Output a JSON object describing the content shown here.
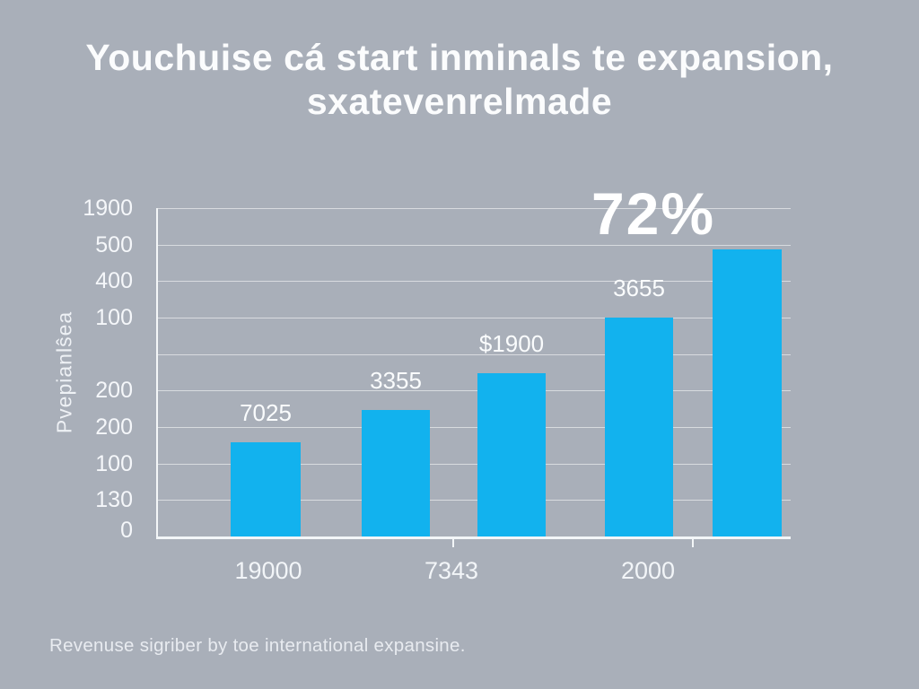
{
  "title": {
    "line1": "Youchuise cá start inminals te expansion,",
    "line2": "sxatevenrelmade"
  },
  "colors": {
    "background": "#a9afb9",
    "bar": "#12b2ee",
    "text": "#fbfcfd",
    "gridline": "rgba(255,255,255,0.55)",
    "axis": "#f3f6f8"
  },
  "chart_data": {
    "type": "bar",
    "title": "Youchuise cá start inminals te expansion, sxatevenrelmade",
    "ylabel": "Pvepianlŝea",
    "xlabel": "",
    "caption": "Revenuse sigriber by toe international expansine.",
    "annotation": "72%",
    "grid": true,
    "legend": false,
    "y_tick_labels": [
      "1900",
      "500",
      "400",
      "100",
      "",
      "200",
      "200",
      "100",
      "130",
      "0"
    ],
    "x_tick_labels": [
      "19000",
      "7343",
      "2000"
    ],
    "bar_color": "#12b2ee",
    "bars": [
      {
        "data_label": "7025",
        "height_pct": 28.7
      },
      {
        "data_label": "3355",
        "height_pct": 38.5
      },
      {
        "data_label": "$1900",
        "height_pct": 49.7
      },
      {
        "data_label": "3655",
        "height_pct": 66.7
      },
      {
        "data_label": "",
        "height_pct": 87.4
      }
    ]
  }
}
